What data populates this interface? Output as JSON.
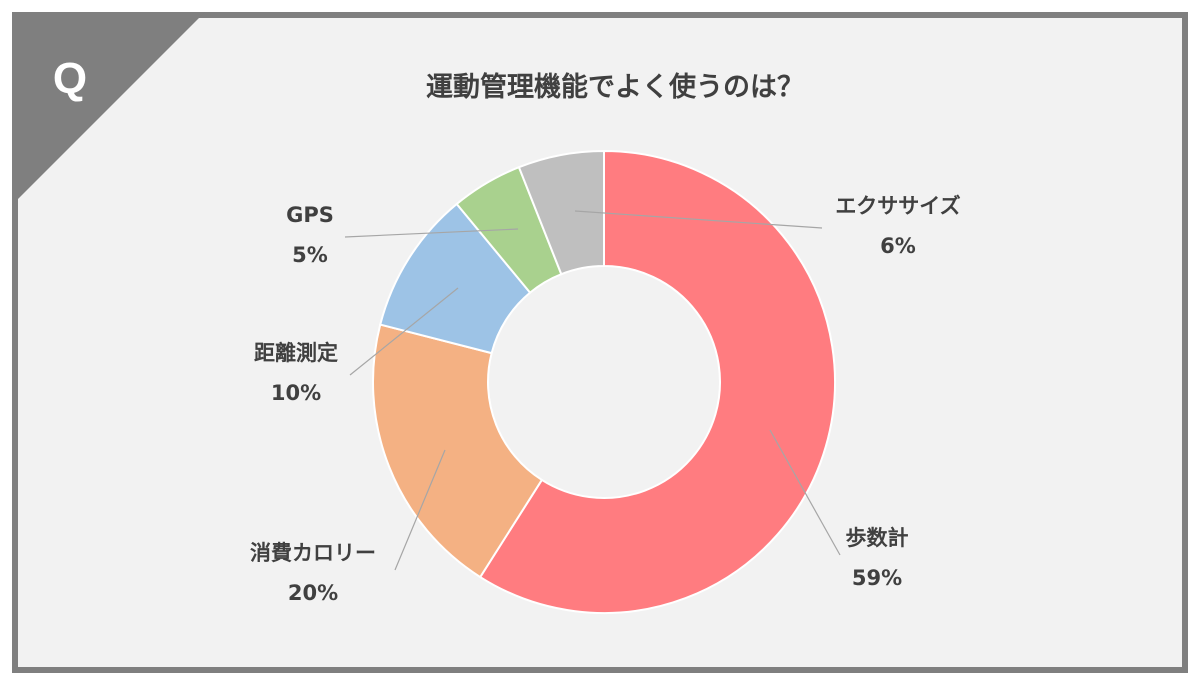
{
  "badge": {
    "letter": "Q"
  },
  "colors": {
    "frame": "#7f7f7f",
    "background": "#f2f2f2",
    "leader": "#a6a6a6",
    "text": "#404040"
  },
  "chart_data": {
    "type": "pie",
    "title": "運動管理機能でよく使うのは？",
    "donut": true,
    "slices": [
      {
        "label": "歩数計",
        "percent_label": "59%",
        "value": 59,
        "color": "#ff7c80"
      },
      {
        "label": "消費カロリー",
        "percent_label": "20%",
        "value": 20,
        "color": "#f4b183"
      },
      {
        "label": "距離測定",
        "percent_label": "10%",
        "value": 10,
        "color": "#9dc3e6"
      },
      {
        "label": "GPS",
        "percent_label": "5%",
        "value": 5,
        "color": "#a9d18e"
      },
      {
        "label": "エクササイズ",
        "percent_label": "6%",
        "value": 6,
        "color": "#bfbfbf"
      }
    ]
  }
}
